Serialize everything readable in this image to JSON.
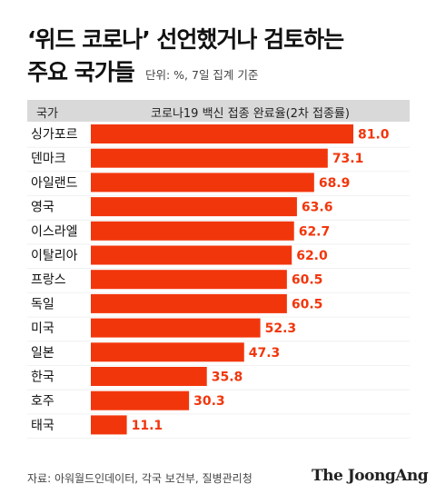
{
  "title": {
    "line1": "‘위드 코로나’ 선언했거나 검토하는",
    "line2": "주요 국가들",
    "unit": "단위: %, 7일 집계 기준"
  },
  "table_header": {
    "country": "국가",
    "metric": "코로나19 백신 접종 완료율(2차 접종률)"
  },
  "source": "자료: 아워월드인데이터, 각국 보건부, 질병관리청",
  "brand": "The JoongAng",
  "colors": {
    "bar": "#f2360c",
    "label": "#f2360c",
    "header_bg": "#d9d9d9"
  },
  "chart_data": {
    "type": "bar",
    "orientation": "horizontal",
    "categories": [
      "싱가포르",
      "덴마크",
      "아일랜드",
      "영국",
      "이스라엘",
      "이탈리아",
      "프랑스",
      "독일",
      "미국",
      "일본",
      "한국",
      "호주",
      "태국"
    ],
    "values": [
      81.0,
      73.1,
      68.9,
      63.6,
      62.7,
      62.0,
      60.5,
      60.5,
      52.3,
      47.3,
      35.8,
      30.3,
      11.1
    ],
    "value_labels": [
      "81.0",
      "73.1",
      "68.9",
      "63.6",
      "62.7",
      "62.0",
      "60.5",
      "60.5",
      "52.3",
      "47.3",
      "35.8",
      "30.3",
      "11.1"
    ],
    "xlim": [
      0,
      81.0
    ]
  }
}
